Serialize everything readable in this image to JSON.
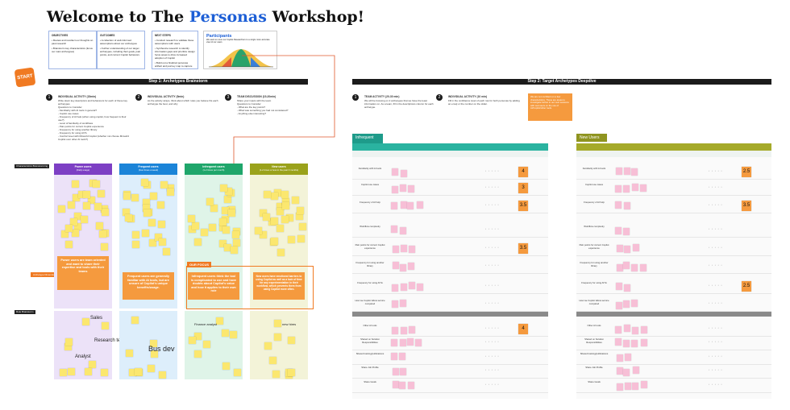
{
  "title": {
    "prefix": "Welcome to The ",
    "highlight": "Personas",
    "suffix": " Workshop!"
  },
  "start_badge": "START",
  "intro_cards": [
    {
      "heading": "OBJECTIVES",
      "lines": [
        "• Review and recollect our thoughts on past research",
        "• Brainstorm key characteristics (focus our main archetypes)"
      ]
    },
    {
      "heading": "OUTCOMES",
      "lines": [
        "• A collection of well-informed assumptions about our archetypes",
        "• Further understanding of our target archetypes, including their goals, pain points, and current Copilot behaviors"
      ]
    },
    {
      "heading": "NEXT STEPS",
      "lines": [
        "• Conduct research to validate those assumptions with users",
        "• Synthesize research to identify information gaps and prioritize design focus areas to drive increased adoption of Copilot",
        "• Build out a finalized personas artifact and journey map to capture our findings"
      ]
    }
  ],
  "participants": {
    "heading": "Participants",
    "subtitle": "We want to move our Copilot Researchers to a single more accurate view of our users"
  },
  "step1": {
    "bar": "Step 1: Archetypes Brainstorm",
    "items": [
      {
        "num": "1",
        "heading": "INDIVIDUAL ACTIVITY (15min)",
        "lines": [
          "Write down key descriptors and behaviours for each of these key archetypes",
          "Questions to Consider",
          "- Familiarity with AI tools in general?",
          "- Copilot use cases",
          "- Frequency of AI help (when using copilot, how frequent is their use?)",
          "- Level of familiarity of workflows",
          "- Pain points for current Copilot experience",
          "- Frequency for using another library",
          "- Frequency for using AIYA",
          "- Comfort level with Mcworld Copilot (whether not choose Mcworld Copilot over other AI tools?)"
        ]
      },
      {
        "num": "2",
        "heading": "INDIVIDUAL ACTIVITY (5min)",
        "lines": [
          "As the activity wraps, think about which rules you believe fits each archetype the best, and why"
        ]
      },
      {
        "num": "3",
        "heading": "TEAM DISCUSSION (15-20min)",
        "lines": [
          "Share your inputs with the team",
          "Questions to Consider",
          "- What are the key points?",
          "- What was something you had not considered?",
          "- Anything else interesting?"
        ]
      }
    ]
  },
  "step2": {
    "bar": "Step 2: Target Archetypes Deepdive",
    "items": [
      {
        "num": "1",
        "heading": "TEAM ACTIVITY (20-30 min)",
        "lines": [
          "We will be focusing on 2 archetypes that we have the least information on. As a team, fill in the descriptions column for each archetype."
        ]
      },
      {
        "num": "2",
        "heading": "INDIVIDUAL ACTIVITY (10 min)",
        "lines": [
          "Fill in the confidence level of each row for both personas by adding an emoji or the number on the slider."
        ]
      }
    ],
    "note": "We are not confident on a few characteristics. These are areas to investigate further in our next sessions with real users on the use of AI/Copilot/other tools."
  },
  "brainstorm": {
    "row1_label": "Characteristics Brainstorming",
    "row2_label": "Role Brainstorm",
    "side_tag": "Archetype Dimensions",
    "columns": [
      {
        "name": "Power users",
        "sub": "(Daily usage)",
        "color": "#7d3fc4",
        "bg": "#ece2f8",
        "callout": "Power users are team oriented and want to share their expertise and tools with their teams",
        "words": [
          "Sales",
          "Analyst",
          "Research team"
        ]
      },
      {
        "name": "Frequent users",
        "sub": "(Few times a week)",
        "color": "#1b84d8",
        "bg": "#ddeefb",
        "callout": "Frequent users are generally familiar with AI tools, but are unsure of Copilot's unique benefits/usage.",
        "words": [
          "Bus dev"
        ]
      },
      {
        "name": "Infrequent users",
        "sub": "(1-2 times per month)",
        "color": "#1fa66b",
        "bg": "#dff4e8",
        "callout": "Infrequent users think the tool is complicated to use and have doubts about Copilot's value and how it applies to their own role",
        "words": [
          "Finance analyst"
        ]
      },
      {
        "name": "New users",
        "sub": "(1-2 times or less in the past 3 months)",
        "color": "#9aa21b",
        "bg": "#f3f3d8",
        "callout": "New users have emotional barriers to using Copilot as well as a lack of time for any experimentation in their workflow, which prevents them from using Copilot more often.",
        "words": [
          "new hires"
        ]
      }
    ],
    "focus_label": "OUR FOCUS"
  },
  "tables": [
    {
      "title": "Infrequent Users",
      "color": "#1e9b8a",
      "header_color": "#2ab3a0",
      "scores": [
        "4",
        "3",
        "3.5",
        "3.5",
        "4"
      ],
      "labels": [
        "Familiarity with AI tools",
        "Copilot use cases",
        "Frequency of AI help",
        "Workflow complexity",
        "Pain points for current Copilot experience",
        "Frequency for using another library",
        "Frequency for using AIYA",
        "How we Copilot fellow service compared",
        "Other AI tools",
        "Shared on Solution Responsibilities",
        "Shared training/publications",
        "Share Job Profile",
        "Share Goals"
      ]
    },
    {
      "title": "New Users",
      "color": "#8f9420",
      "header_color": "#a5aa2a",
      "scores": [
        "2.5",
        "3.5",
        "2.5"
      ],
      "labels": [
        "Familiarity with AI tools",
        "Copilot use cases",
        "Frequency of AI help",
        "Workflow complexity",
        "Pain points for current Copilot experience",
        "Frequency for using another library",
        "Frequency for using AIYA",
        "How we Copilot fellow service compared",
        "Other AI tools",
        "Shared on Solution Responsibilities",
        "Shared training/publications",
        "Share Job Profile",
        "Share Goals"
      ]
    }
  ]
}
